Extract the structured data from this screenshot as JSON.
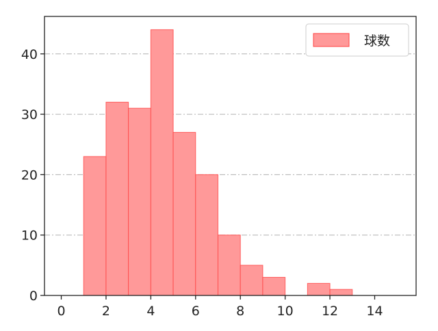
{
  "chart_data": {
    "type": "bar",
    "bin_edges": [
      1,
      2,
      3,
      4,
      5,
      6,
      7,
      8,
      9,
      10,
      11,
      12,
      13
    ],
    "values": [
      23,
      32,
      31,
      44,
      27,
      20,
      10,
      5,
      3,
      0,
      2,
      1
    ],
    "series": [
      {
        "name": "球数",
        "values": [
          23,
          32,
          31,
          44,
          27,
          20,
          10,
          5,
          3,
          0,
          2,
          1
        ]
      }
    ],
    "title": "",
    "xlabel": "",
    "ylabel": "",
    "xlim": [
      -0.75,
      15.85
    ],
    "ylim": [
      0,
      46.2
    ],
    "xticks": [
      0,
      2,
      4,
      6,
      8,
      10,
      12,
      14
    ],
    "yticks": [
      0,
      10,
      20,
      30,
      40
    ],
    "grid": "horizontal dash-dot",
    "legend": {
      "placement": "top-right",
      "entries": [
        "球数"
      ]
    },
    "colors": {
      "bar_fill": "#ff9999",
      "bar_edge": "#ff4444",
      "grid": "#b0b0b0"
    }
  }
}
